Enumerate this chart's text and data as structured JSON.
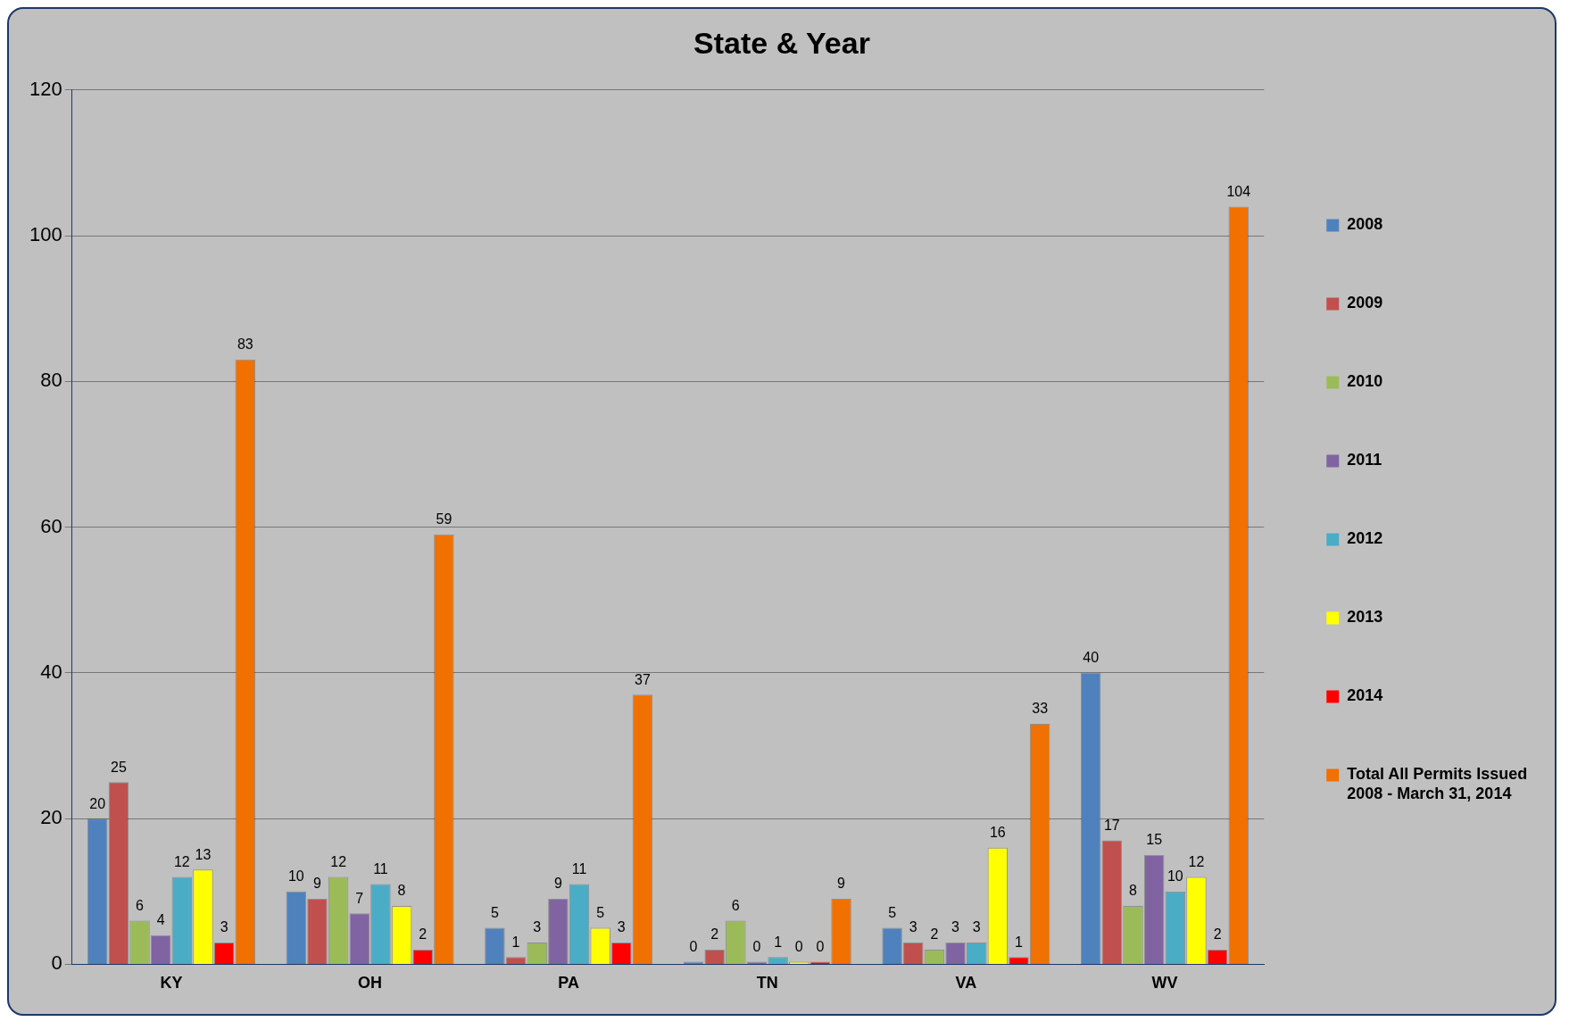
{
  "chart_data": {
    "type": "bar",
    "title": "State & Year",
    "categories": [
      "KY",
      "OH",
      "PA",
      "TN",
      "VA",
      "WV"
    ],
    "series": [
      {
        "name": "2008",
        "color": "#4f81bd",
        "values": [
          20,
          10,
          5,
          0,
          5,
          40
        ]
      },
      {
        "name": "2009",
        "color": "#c0504d",
        "values": [
          25,
          9,
          1,
          2,
          3,
          17
        ]
      },
      {
        "name": "2010",
        "color": "#9bbb59",
        "values": [
          6,
          12,
          3,
          6,
          2,
          8
        ]
      },
      {
        "name": "2011",
        "color": "#8064a2",
        "values": [
          4,
          7,
          9,
          0,
          3,
          15
        ]
      },
      {
        "name": "2012",
        "color": "#4bacc6",
        "values": [
          12,
          11,
          11,
          1,
          3,
          10
        ]
      },
      {
        "name": "2013",
        "color": "#ffff00",
        "values": [
          13,
          8,
          5,
          0,
          16,
          12
        ]
      },
      {
        "name": "2014",
        "color": "#ff0000",
        "values": [
          3,
          2,
          3,
          0,
          1,
          2
        ]
      },
      {
        "name": "Total All Permits Issued 2008 - March 31, 2014",
        "color": "#f07000",
        "values": [
          83,
          59,
          37,
          9,
          33,
          104
        ]
      }
    ],
    "ylim": [
      0,
      120
    ],
    "yticks": [
      0,
      20,
      40,
      60,
      80,
      100,
      120
    ],
    "grid": "y",
    "legend": "right",
    "data_labels": true
  }
}
